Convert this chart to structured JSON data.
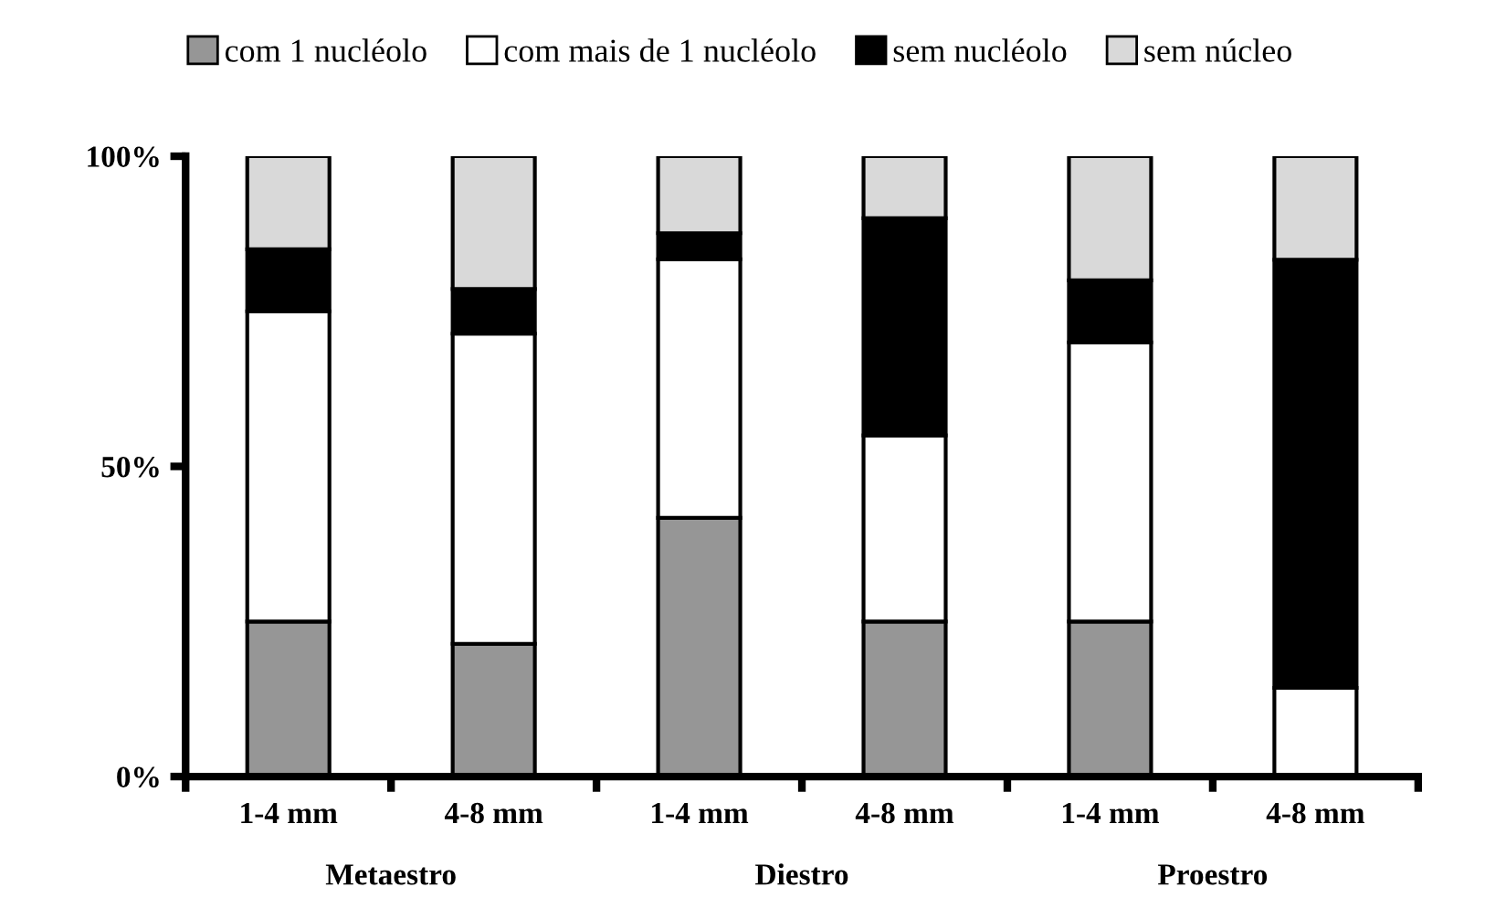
{
  "chart_data": {
    "type": "bar",
    "stacked": true,
    "categories": [
      "1-4 mm",
      "4-8 mm",
      "1-4 mm",
      "4-8 mm",
      "1-4 mm",
      "4-8 mm"
    ],
    "series": [
      {
        "name": "com 1 nucléolo",
        "color": "#969696",
        "values": [
          25,
          21.4,
          41.7,
          25,
          25,
          0
        ]
      },
      {
        "name": "com mais de 1 nucléolo",
        "color": "#ffffff",
        "values": [
          50,
          50,
          41.7,
          30,
          45,
          14.3
        ]
      },
      {
        "name": "sem nucléolo",
        "color": "#000000",
        "values": [
          10,
          7.2,
          4.2,
          35,
          10,
          69
        ]
      },
      {
        "name": "sem núcleo",
        "color": "#d9d9d9",
        "values": [
          15,
          21.4,
          12.4,
          10,
          20,
          16.7
        ]
      }
    ],
    "ylim": [
      0,
      100
    ],
    "yticks": [
      {
        "value": 0,
        "label": "0%"
      },
      {
        "value": 50,
        "label": "50%"
      },
      {
        "value": 100,
        "label": "100%"
      }
    ],
    "annotations": [
      "Metaestro",
      "Diestro",
      "Proestro"
    ],
    "legend": "top",
    "grid": false
  }
}
